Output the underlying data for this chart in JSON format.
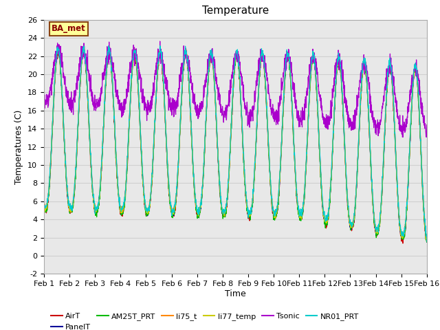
{
  "title": "Temperature",
  "ylabel": "Temperatures (C)",
  "xlabel": "Time",
  "ylim": [
    -2,
    26
  ],
  "annotation_text": "BA_met",
  "annotation_color": "#8B0000",
  "annotation_bg": "#FFFF99",
  "annotation_edge": "#8B4513",
  "grid_color": "#d0d0d0",
  "bg_color": "#e8e8e8",
  "series": [
    {
      "label": "AirT",
      "color": "#cc0000"
    },
    {
      "label": "PanelT",
      "color": "#000099"
    },
    {
      "label": "AM25T_PRT",
      "color": "#00bb00"
    },
    {
      "label": "li75_t",
      "color": "#ff8800"
    },
    {
      "label": "li77_temp",
      "color": "#cccc00"
    },
    {
      "label": "Tsonic",
      "color": "#aa00cc"
    },
    {
      "label": "NR01_PRT",
      "color": "#00cccc"
    }
  ],
  "xtick_labels": [
    "Feb 1",
    "Feb 2",
    "Feb 3",
    "Feb 4",
    "Feb 5",
    "Feb 6",
    "Feb 7",
    "Feb 8",
    "Feb 9",
    "Feb 10",
    "Feb 11",
    "Feb 12",
    "Feb 13",
    "Feb 14",
    "Feb 15",
    "Feb 16"
  ],
  "n_days": 15,
  "pts_per_day": 144
}
